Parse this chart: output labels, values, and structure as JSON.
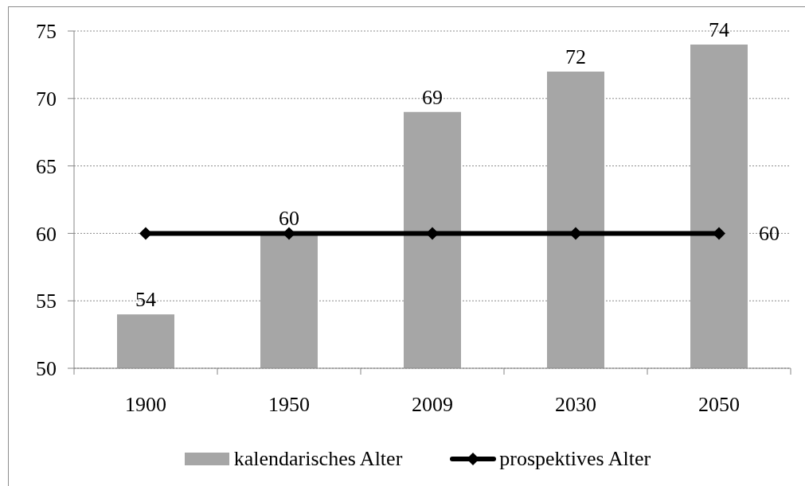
{
  "chart_data": {
    "type": "bar",
    "categories": [
      "1900",
      "1950",
      "2009",
      "2030",
      "2050"
    ],
    "series": [
      {
        "name": "kalendarisches Alter",
        "color": "#a6a6a6",
        "values": [
          54,
          60,
          69,
          72,
          74
        ],
        "value_labels": [
          "54",
          "60",
          "69",
          "72",
          "74"
        ]
      },
      {
        "name": "prospektives Alter",
        "type": "line",
        "color": "#000000",
        "marker": "diamond",
        "values": [
          60,
          60,
          60,
          60,
          60
        ],
        "value_labels": [
          null,
          null,
          null,
          null,
          "60"
        ]
      }
    ],
    "ylim": [
      50,
      75
    ],
    "yticks": [
      50,
      55,
      60,
      65,
      70,
      75
    ],
    "grid": "y",
    "legend": "bottom"
  }
}
